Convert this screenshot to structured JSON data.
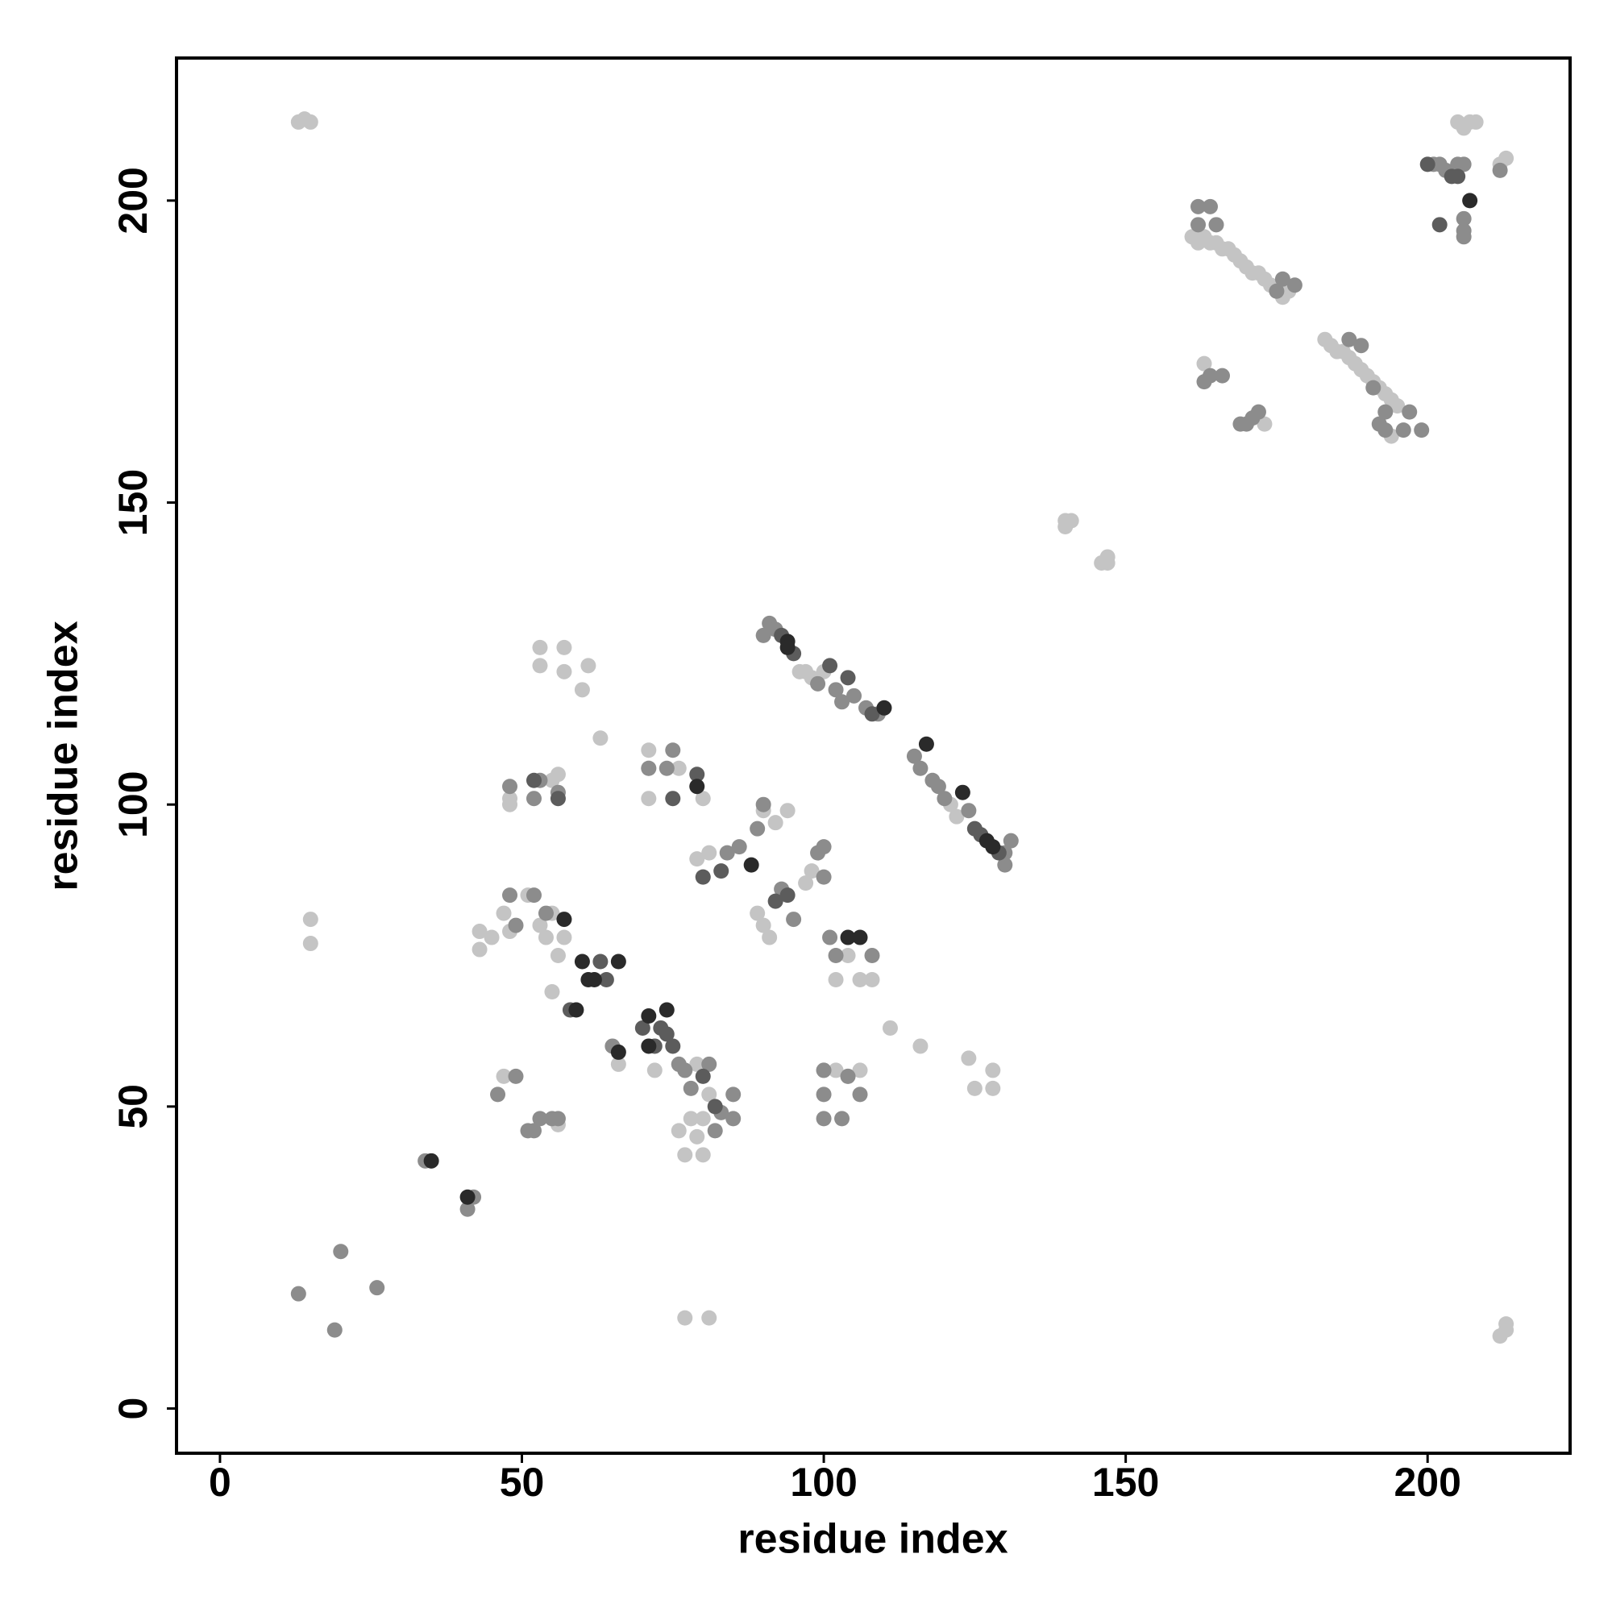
{
  "chart_data": {
    "type": "scatter",
    "xlabel": "residue index",
    "ylabel": "residue index",
    "xlim": [
      -7.2,
      223.6
    ],
    "ylim": [
      -7.4,
      223.6
    ],
    "xticks": [
      0,
      50,
      100,
      150,
      200
    ],
    "yticks": [
      0,
      50,
      100,
      150,
      200
    ],
    "grid": false,
    "series": [
      {
        "color": "#c4c4c4",
        "x": [
          13,
          14,
          15,
          15,
          15,
          213,
          212,
          213,
          140,
          141,
          140,
          146,
          147,
          147,
          77,
          81,
          161,
          162,
          163,
          164,
          165,
          166,
          167,
          168,
          169,
          170,
          171,
          172,
          173,
          174,
          175,
          176,
          177,
          183,
          184,
          185,
          186,
          187,
          188,
          189,
          190,
          191,
          192,
          193,
          194,
          195,
          194,
          163,
          173,
          205,
          206,
          207,
          208,
          212,
          213,
          96,
          97,
          98,
          100,
          122,
          121,
          48,
          48,
          56,
          55,
          71,
          71,
          76,
          80,
          71,
          53,
          53,
          57,
          57,
          61,
          60,
          63,
          79,
          80,
          81,
          90,
          92,
          94,
          89,
          90,
          91,
          97,
          98,
          102,
          104,
          106,
          108,
          100,
          102,
          104,
          106,
          111,
          116,
          124,
          125,
          128,
          128,
          43,
          43,
          45,
          47,
          48,
          51,
          53,
          54,
          55,
          57,
          56,
          55,
          47,
          56,
          66,
          72,
          76,
          77,
          79,
          81,
          79,
          80,
          77,
          76,
          78,
          80
        ],
        "y": [
          213,
          213.5,
          213,
          81,
          77,
          14,
          12,
          13,
          147,
          147,
          146,
          140,
          141,
          140,
          15,
          15,
          194,
          193,
          194,
          193,
          193,
          192,
          192,
          191,
          190,
          189,
          188,
          188,
          187,
          186,
          185,
          184,
          185,
          177,
          176,
          175,
          175,
          174,
          173,
          172,
          171,
          170,
          169,
          168,
          167,
          166,
          161,
          173,
          163,
          213,
          212,
          213,
          213,
          206,
          207,
          122,
          122,
          121,
          122,
          98,
          100,
          101,
          100,
          105,
          104,
          109,
          106,
          106,
          101,
          101,
          126,
          123,
          126,
          122,
          123,
          119,
          111,
          91,
          88,
          92,
          99,
          97,
          99,
          82,
          80,
          78,
          87,
          89,
          71,
          75,
          71,
          71,
          56,
          56,
          55,
          56,
          63,
          60,
          58,
          53,
          56,
          53,
          79,
          76,
          78,
          82,
          79,
          85,
          80,
          78,
          82,
          78,
          75,
          69,
          55,
          47,
          57,
          56,
          57,
          56,
          57,
          52,
          45,
          42,
          42,
          46,
          48,
          48
        ]
      },
      {
        "color": "#8c8c8c",
        "x": [
          13,
          19,
          20,
          26,
          34,
          41,
          42,
          162,
          164,
          162,
          165,
          176,
          178,
          175,
          187,
          189,
          191,
          193,
          197,
          199,
          196,
          192,
          193,
          163,
          164,
          166,
          169,
          170,
          171,
          172,
          201,
          202,
          203,
          205,
          206,
          206,
          206,
          206,
          212,
          90,
          91,
          92,
          99,
          102,
          103,
          105,
          107,
          109,
          115,
          116,
          118,
          119,
          120,
          124,
          130,
          131,
          130,
          48,
          52,
          56,
          74,
          75,
          71,
          53,
          86,
          89,
          90,
          84,
          93,
          95,
          99,
          100,
          100,
          101,
          102,
          108,
          100,
          106,
          100,
          103,
          100,
          104,
          46,
          49,
          52,
          54,
          49,
          48,
          51,
          52,
          53,
          55,
          56,
          65,
          76,
          77,
          78,
          83,
          85,
          85,
          82,
          81
        ],
        "y": [
          19,
          13,
          26,
          20,
          41,
          33,
          35,
          199,
          199,
          196,
          196,
          187,
          186,
          185,
          177,
          176,
          169,
          165,
          165,
          162,
          162,
          163,
          162,
          170,
          171,
          171,
          163,
          163,
          164,
          165,
          206,
          206,
          205,
          206,
          206,
          197,
          195,
          194,
          205,
          128,
          130,
          129,
          120,
          119,
          117,
          118,
          116,
          115,
          108,
          106,
          104,
          103,
          101,
          99,
          92,
          94,
          90,
          103,
          101,
          102,
          106,
          109,
          106,
          104,
          93,
          96,
          100,
          92,
          86,
          81,
          92,
          93,
          88,
          78,
          75,
          75,
          52,
          52,
          48,
          48,
          56,
          55,
          52,
          55,
          85,
          82,
          80,
          85,
          46,
          46,
          48,
          48,
          48,
          60,
          57,
          56,
          53,
          49,
          52,
          48,
          46,
          57
        ]
      },
      {
        "color": "#5c5c5c",
        "x": [
          58,
          63,
          64,
          72,
          73,
          75,
          93,
          95,
          101,
          104,
          108,
          125,
          126,
          129,
          92,
          94,
          80,
          83,
          202,
          205,
          204,
          200,
          82,
          80,
          75,
          79,
          52,
          56,
          70,
          74
        ],
        "y": [
          66,
          74,
          71,
          60,
          63,
          60,
          128,
          125,
          123,
          121,
          115,
          96,
          95,
          92,
          84,
          85,
          88,
          89,
          196,
          204,
          204,
          206,
          50,
          55,
          101,
          105,
          104,
          101,
          63,
          62
        ]
      },
      {
        "color": "#2a2a2a",
        "x": [
          35,
          41,
          60,
          61,
          66,
          62,
          74,
          71,
          71,
          94,
          94,
          117,
          110,
          127,
          128,
          106,
          104,
          88,
          59,
          79,
          66,
          123,
          207,
          57
        ],
        "y": [
          41,
          35,
          74,
          71,
          74,
          71,
          66,
          65,
          60,
          127,
          126,
          110,
          116,
          94,
          93,
          78,
          78,
          90,
          66,
          103,
          59,
          102,
          200,
          81
        ]
      }
    ]
  }
}
